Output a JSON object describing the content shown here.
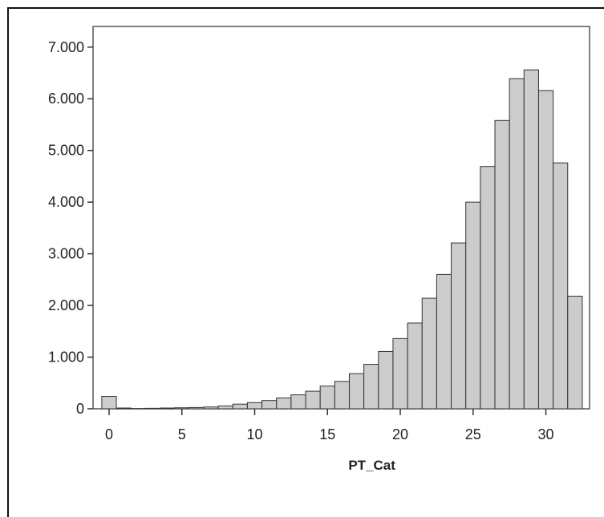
{
  "chart_data": {
    "type": "bar",
    "xlabel": "PT_Cat",
    "ylabel": "",
    "xlim": [
      -1.1,
      33.0
    ],
    "ylim": [
      0,
      7400
    ],
    "x_ticks": [
      0,
      5,
      10,
      15,
      20,
      25,
      30
    ],
    "x_tick_labels": [
      "0",
      "5",
      "10",
      "15",
      "20",
      "25",
      "30"
    ],
    "y_ticks": [
      0,
      1000,
      2000,
      3000,
      4000,
      5000,
      6000,
      7000
    ],
    "y_tick_labels": [
      "0",
      "1.000",
      "2.000",
      "3.000",
      "4.000",
      "5.000",
      "6.000",
      "7.000"
    ],
    "grid": false,
    "bar_color": "#cccccc",
    "bar_edge_color": "#333333",
    "bin_width": 1,
    "x": [
      0,
      1,
      2,
      3,
      4,
      5,
      6,
      7,
      8,
      9,
      10,
      11,
      12,
      13,
      14,
      15,
      16,
      17,
      18,
      19,
      20,
      21,
      22,
      23,
      24,
      25,
      26,
      27,
      28,
      29,
      30,
      31,
      32
    ],
    "values": [
      240,
      15,
      5,
      10,
      15,
      20,
      25,
      35,
      55,
      90,
      120,
      160,
      210,
      270,
      340,
      440,
      530,
      680,
      860,
      1110,
      1360,
      1660,
      2140,
      2600,
      3210,
      4000,
      4690,
      5580,
      6390,
      6560,
      6160,
      4760,
      2180
    ]
  }
}
